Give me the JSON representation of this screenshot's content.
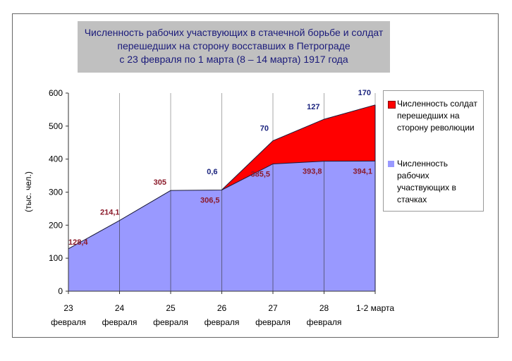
{
  "title": [
    "Численность рабочих участвующих в стачечной борьбе и солдат",
    "перешедших на сторону восставших в Петрограде",
    "с 23 февраля по 1 марта  (8 – 14 марта) 1917 года"
  ],
  "chart_data": {
    "type": "area",
    "stacked": true,
    "ylabel": "(тыс. чел.)",
    "ylim": [
      0,
      600
    ],
    "yticks": [
      "0",
      "100",
      "200",
      "300",
      "400",
      "500",
      "600"
    ],
    "categories": [
      [
        "23",
        "февраля"
      ],
      [
        "24",
        "февраля"
      ],
      [
        "25",
        "февраля"
      ],
      [
        "26",
        "февраля"
      ],
      [
        "27",
        "февраля"
      ],
      [
        "28",
        "февраля"
      ],
      [
        "1-2 марта",
        ""
      ]
    ],
    "series": [
      {
        "name": "Численность рабочих участвующих в стачках",
        "color": "#9999ff",
        "label_color": "#8b1a2a",
        "values": [
          128.4,
          214.1,
          305,
          306.5,
          385.5,
          393.8,
          394.1
        ],
        "labels": [
          "128,4",
          "214,1",
          "305",
          "306,5",
          "385,5",
          "393,8",
          "394,1"
        ]
      },
      {
        "name": "Численность солдат перешедших на сторону революции",
        "color": "#ff0000",
        "label_color": "#1a237e",
        "values": [
          0,
          0,
          0,
          0.6,
          70,
          127,
          170
        ],
        "labels": [
          "",
          "",
          "",
          "0,6",
          "70",
          "127",
          "170"
        ]
      }
    ],
    "grid": "vertical",
    "legend": "right"
  }
}
